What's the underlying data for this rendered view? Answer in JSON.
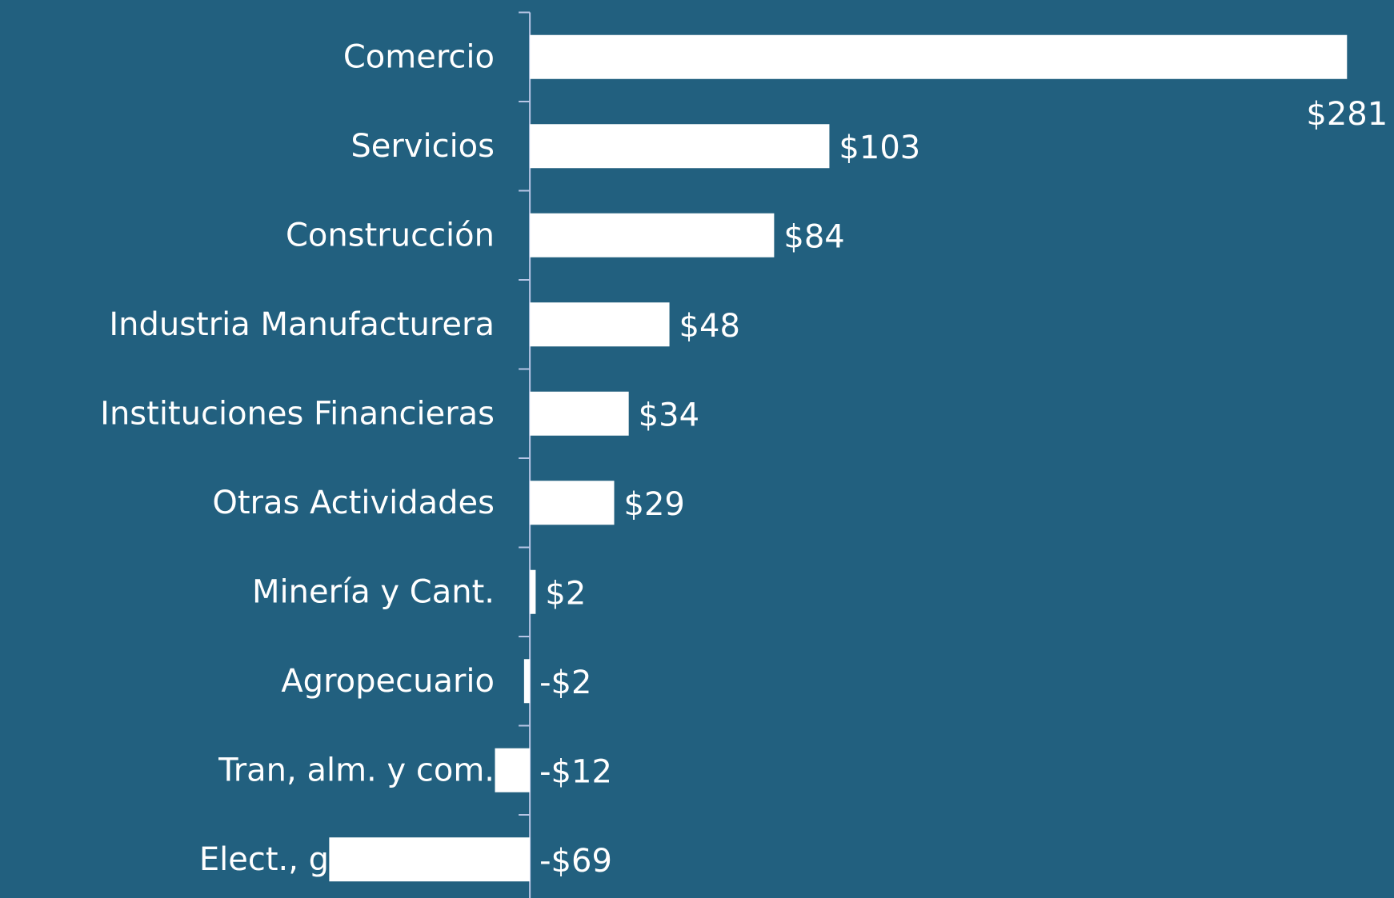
{
  "chart_data": {
    "type": "bar",
    "orientation": "horizontal",
    "categories": [
      "Comercio",
      "Servicios",
      "Construcción",
      "Industria Manufacturera",
      "Instituciones Financieras",
      "Otras Actividades",
      "Minería y Cant.",
      "Agropecuario",
      "Tran, alm. y com.",
      "Elect., gas, agua y"
    ],
    "values": [
      281,
      103,
      84,
      48,
      34,
      29,
      2,
      -2,
      -12,
      -69
    ],
    "value_labels": [
      "$281",
      "$103",
      "$84",
      "$48",
      "$34",
      "$29",
      "$2",
      "-$2",
      "-$12",
      "-$69"
    ],
    "color": "#ffffff",
    "background": "#22607f",
    "xlim": [
      -180,
      290
    ]
  }
}
